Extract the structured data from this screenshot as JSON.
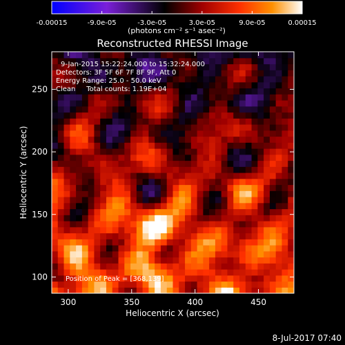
{
  "chart_data": {
    "type": "heatmap",
    "title": "Reconstructed RHESSI Image",
    "xlabel": "Heliocentric X (arcsec)",
    "ylabel": "Heliocentric Y (arcsec)",
    "xlim": [
      287,
      478
    ],
    "ylim": [
      87,
      280
    ],
    "x_ticks": [
      300,
      350,
      400,
      450
    ],
    "y_ticks": [
      100,
      150,
      200,
      250
    ],
    "colorbar": {
      "min": -0.00015,
      "max": 0.00015,
      "tick_values": [
        -0.00015,
        -9e-05,
        -3e-05,
        3e-05,
        9e-05,
        0.00015
      ],
      "tick_labels": [
        "-0.00015",
        "-9.0e-05",
        "-3.0e-05",
        "3.0e-05",
        "9.0e-05",
        "0.00015"
      ],
      "unit_label": "(photons cm⁻² s⁻¹ asec⁻²)",
      "colors": [
        "#0000ff",
        "#7a1fd8",
        "#000000",
        "#a00000",
        "#ff3000",
        "#ff9000",
        "#ffffff"
      ]
    },
    "annotations": [
      "9-Jan-2015 15:22:24.000 to 15:32:24.000",
      "Detectors: 3F 5F 6F 7F 8F 9F, Att 0",
      "Energy Range: 25.0 - 50.0 keV",
      "Clean     Total counts: 1.19E+04"
    ],
    "peak_label": "Position of Peak = [368,139]",
    "peak_position": [
      368,
      139
    ],
    "grid_columns": 40,
    "grid_rows": 40,
    "intensity_note": "diffuse mottled emission; strongest in lower half, peak near X=368, Y=139 after colorbar scaling"
  },
  "footer": {
    "date": "8-Jul-2017 07:40"
  }
}
